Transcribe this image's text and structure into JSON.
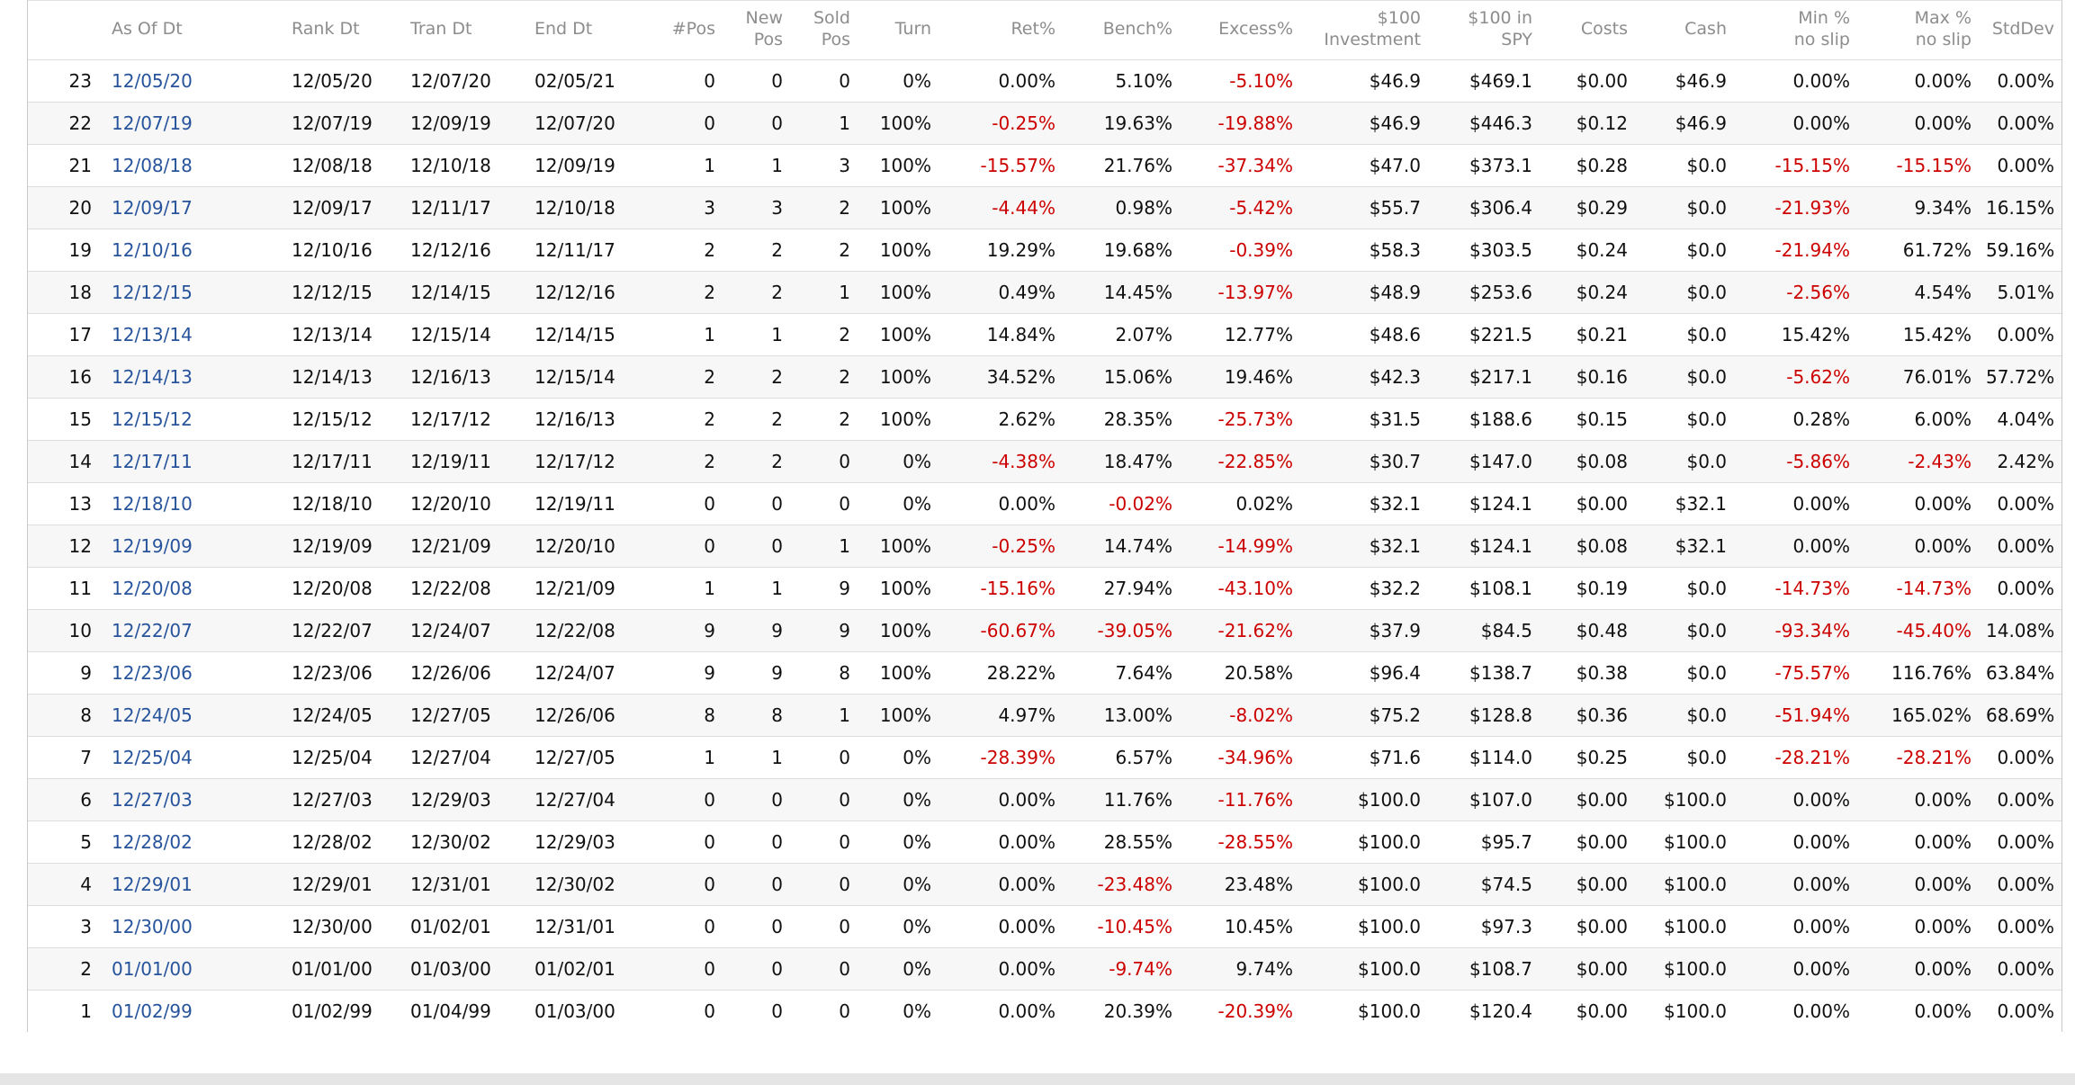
{
  "table": {
    "headers": [
      "As Of Dt",
      "Rank Dt",
      "Tran Dt",
      "End Dt",
      "#Pos",
      "New\nPos",
      "Sold\nPos",
      "Turn",
      "Ret%",
      "Bench%",
      "Excess%",
      "$100\nInvestment",
      "$100 in\nSPY",
      "Costs",
      "Cash",
      "Min %\nno slip",
      "Max %\nno slip",
      "StdDev"
    ],
    "rows": [
      [
        "23",
        "12/05/20",
        "12/05/20",
        "12/07/20",
        "02/05/21",
        "0",
        "0",
        "0",
        "0%",
        "0.00%",
        "5.10%",
        "-5.10%",
        "$46.9",
        "$469.1",
        "$0.00",
        "$46.9",
        "0.00%",
        "0.00%",
        "0.00%"
      ],
      [
        "22",
        "12/07/19",
        "12/07/19",
        "12/09/19",
        "12/07/20",
        "0",
        "0",
        "1",
        "100%",
        "-0.25%",
        "19.63%",
        "-19.88%",
        "$46.9",
        "$446.3",
        "$0.12",
        "$46.9",
        "0.00%",
        "0.00%",
        "0.00%"
      ],
      [
        "21",
        "12/08/18",
        "12/08/18",
        "12/10/18",
        "12/09/19",
        "1",
        "1",
        "3",
        "100%",
        "-15.57%",
        "21.76%",
        "-37.34%",
        "$47.0",
        "$373.1",
        "$0.28",
        "$0.0",
        "-15.15%",
        "-15.15%",
        "0.00%"
      ],
      [
        "20",
        "12/09/17",
        "12/09/17",
        "12/11/17",
        "12/10/18",
        "3",
        "3",
        "2",
        "100%",
        "-4.44%",
        "0.98%",
        "-5.42%",
        "$55.7",
        "$306.4",
        "$0.29",
        "$0.0",
        "-21.93%",
        "9.34%",
        "16.15%"
      ],
      [
        "19",
        "12/10/16",
        "12/10/16",
        "12/12/16",
        "12/11/17",
        "2",
        "2",
        "2",
        "100%",
        "19.29%",
        "19.68%",
        "-0.39%",
        "$58.3",
        "$303.5",
        "$0.24",
        "$0.0",
        "-21.94%",
        "61.72%",
        "59.16%"
      ],
      [
        "18",
        "12/12/15",
        "12/12/15",
        "12/14/15",
        "12/12/16",
        "2",
        "2",
        "1",
        "100%",
        "0.49%",
        "14.45%",
        "-13.97%",
        "$48.9",
        "$253.6",
        "$0.24",
        "$0.0",
        "-2.56%",
        "4.54%",
        "5.01%"
      ],
      [
        "17",
        "12/13/14",
        "12/13/14",
        "12/15/14",
        "12/14/15",
        "1",
        "1",
        "2",
        "100%",
        "14.84%",
        "2.07%",
        "12.77%",
        "$48.6",
        "$221.5",
        "$0.21",
        "$0.0",
        "15.42%",
        "15.42%",
        "0.00%"
      ],
      [
        "16",
        "12/14/13",
        "12/14/13",
        "12/16/13",
        "12/15/14",
        "2",
        "2",
        "2",
        "100%",
        "34.52%",
        "15.06%",
        "19.46%",
        "$42.3",
        "$217.1",
        "$0.16",
        "$0.0",
        "-5.62%",
        "76.01%",
        "57.72%"
      ],
      [
        "15",
        "12/15/12",
        "12/15/12",
        "12/17/12",
        "12/16/13",
        "2",
        "2",
        "2",
        "100%",
        "2.62%",
        "28.35%",
        "-25.73%",
        "$31.5",
        "$188.6",
        "$0.15",
        "$0.0",
        "0.28%",
        "6.00%",
        "4.04%"
      ],
      [
        "14",
        "12/17/11",
        "12/17/11",
        "12/19/11",
        "12/17/12",
        "2",
        "2",
        "0",
        "0%",
        "-4.38%",
        "18.47%",
        "-22.85%",
        "$30.7",
        "$147.0",
        "$0.08",
        "$0.0",
        "-5.86%",
        "-2.43%",
        "2.42%"
      ],
      [
        "13",
        "12/18/10",
        "12/18/10",
        "12/20/10",
        "12/19/11",
        "0",
        "0",
        "0",
        "0%",
        "0.00%",
        "-0.02%",
        "0.02%",
        "$32.1",
        "$124.1",
        "$0.00",
        "$32.1",
        "0.00%",
        "0.00%",
        "0.00%"
      ],
      [
        "12",
        "12/19/09",
        "12/19/09",
        "12/21/09",
        "12/20/10",
        "0",
        "0",
        "1",
        "100%",
        "-0.25%",
        "14.74%",
        "-14.99%",
        "$32.1",
        "$124.1",
        "$0.08",
        "$32.1",
        "0.00%",
        "0.00%",
        "0.00%"
      ],
      [
        "11",
        "12/20/08",
        "12/20/08",
        "12/22/08",
        "12/21/09",
        "1",
        "1",
        "9",
        "100%",
        "-15.16%",
        "27.94%",
        "-43.10%",
        "$32.2",
        "$108.1",
        "$0.19",
        "$0.0",
        "-14.73%",
        "-14.73%",
        "0.00%"
      ],
      [
        "10",
        "12/22/07",
        "12/22/07",
        "12/24/07",
        "12/22/08",
        "9",
        "9",
        "9",
        "100%",
        "-60.67%",
        "-39.05%",
        "-21.62%",
        "$37.9",
        "$84.5",
        "$0.48",
        "$0.0",
        "-93.34%",
        "-45.40%",
        "14.08%"
      ],
      [
        "9",
        "12/23/06",
        "12/23/06",
        "12/26/06",
        "12/24/07",
        "9",
        "9",
        "8",
        "100%",
        "28.22%",
        "7.64%",
        "20.58%",
        "$96.4",
        "$138.7",
        "$0.38",
        "$0.0",
        "-75.57%",
        "116.76%",
        "63.84%"
      ],
      [
        "8",
        "12/24/05",
        "12/24/05",
        "12/27/05",
        "12/26/06",
        "8",
        "8",
        "1",
        "100%",
        "4.97%",
        "13.00%",
        "-8.02%",
        "$75.2",
        "$128.8",
        "$0.36",
        "$0.0",
        "-51.94%",
        "165.02%",
        "68.69%"
      ],
      [
        "7",
        "12/25/04",
        "12/25/04",
        "12/27/04",
        "12/27/05",
        "1",
        "1",
        "0",
        "0%",
        "-28.39%",
        "6.57%",
        "-34.96%",
        "$71.6",
        "$114.0",
        "$0.25",
        "$0.0",
        "-28.21%",
        "-28.21%",
        "0.00%"
      ],
      [
        "6",
        "12/27/03",
        "12/27/03",
        "12/29/03",
        "12/27/04",
        "0",
        "0",
        "0",
        "0%",
        "0.00%",
        "11.76%",
        "-11.76%",
        "$100.0",
        "$107.0",
        "$0.00",
        "$100.0",
        "0.00%",
        "0.00%",
        "0.00%"
      ],
      [
        "5",
        "12/28/02",
        "12/28/02",
        "12/30/02",
        "12/29/03",
        "0",
        "0",
        "0",
        "0%",
        "0.00%",
        "28.55%",
        "-28.55%",
        "$100.0",
        "$95.7",
        "$0.00",
        "$100.0",
        "0.00%",
        "0.00%",
        "0.00%"
      ],
      [
        "4",
        "12/29/01",
        "12/29/01",
        "12/31/01",
        "12/30/02",
        "0",
        "0",
        "0",
        "0%",
        "0.00%",
        "-23.48%",
        "23.48%",
        "$100.0",
        "$74.5",
        "$0.00",
        "$100.0",
        "0.00%",
        "0.00%",
        "0.00%"
      ],
      [
        "3",
        "12/30/00",
        "12/30/00",
        "01/02/01",
        "12/31/01",
        "0",
        "0",
        "0",
        "0%",
        "0.00%",
        "-10.45%",
        "10.45%",
        "$100.0",
        "$97.3",
        "$0.00",
        "$100.0",
        "0.00%",
        "0.00%",
        "0.00%"
      ],
      [
        "2",
        "01/01/00",
        "01/01/00",
        "01/03/00",
        "01/02/01",
        "0",
        "0",
        "0",
        "0%",
        "0.00%",
        "-9.74%",
        "9.74%",
        "$100.0",
        "$108.7",
        "$0.00",
        "$100.0",
        "0.00%",
        "0.00%",
        "0.00%"
      ],
      [
        "1",
        "01/02/99",
        "01/02/99",
        "01/04/99",
        "01/03/00",
        "0",
        "0",
        "0",
        "0%",
        "0.00%",
        "20.39%",
        "-20.39%",
        "$100.0",
        "$120.4",
        "$0.00",
        "$100.0",
        "0.00%",
        "0.00%",
        "0.00%"
      ]
    ]
  },
  "colors": {
    "negative": "#cc0000",
    "date_link": "#26539b",
    "header_text": "#8d8d8d",
    "row_stripe": "#f7f7f7",
    "row_border": "#dddddd"
  }
}
